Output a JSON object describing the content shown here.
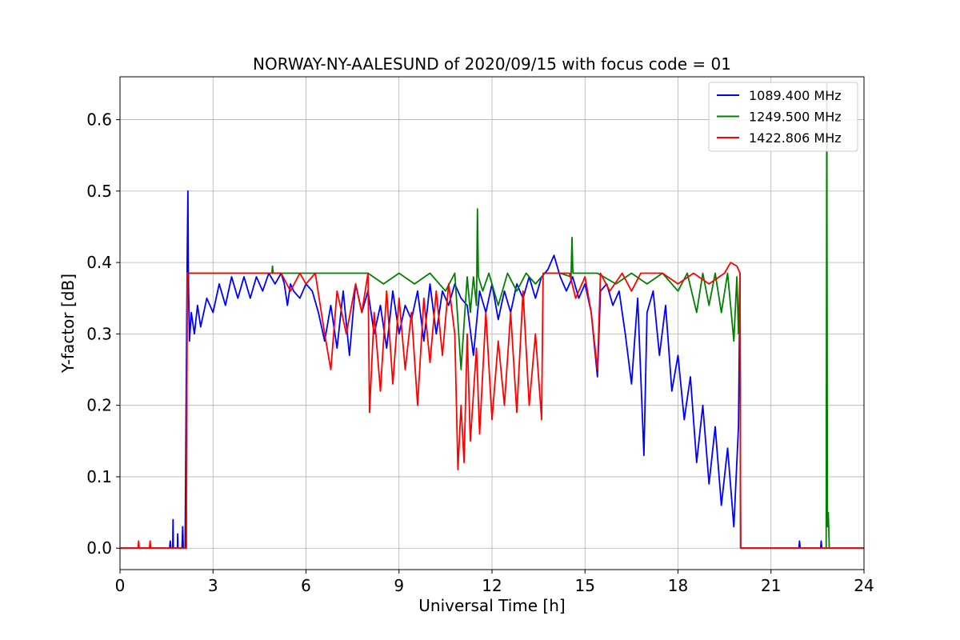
{
  "chart_data": {
    "type": "line",
    "title": "NORWAY-NY-AALESUND of 2020/09/15 with focus code = 01",
    "xlabel": "Universal Time [h]",
    "ylabel": "Y-factor [dB]",
    "xlim": [
      0,
      24
    ],
    "ylim": [
      -0.03,
      0.66
    ],
    "xticks": [
      0,
      3,
      6,
      9,
      12,
      15,
      18,
      21,
      24
    ],
    "xtick_labels": [
      "0",
      "3",
      "6",
      "9",
      "12",
      "15",
      "18",
      "21",
      "24"
    ],
    "yticks": [
      0.0,
      0.1,
      0.2,
      0.3,
      0.4,
      0.5,
      0.6
    ],
    "ytick_labels": [
      "0.0",
      "0.1",
      "0.2",
      "0.3",
      "0.4",
      "0.5",
      "0.6"
    ],
    "grid": true,
    "legend_position": "top-right",
    "series": [
      {
        "name": "1089.400 MHz",
        "color": "#0000ff",
        "points": [
          [
            0,
            0
          ],
          [
            1.6,
            0
          ],
          [
            1.62,
            0.01
          ],
          [
            1.64,
            0
          ],
          [
            1.7,
            0
          ],
          [
            1.71,
            0.04
          ],
          [
            1.72,
            0
          ],
          [
            1.85,
            0
          ],
          [
            1.86,
            0.02
          ],
          [
            1.87,
            0
          ],
          [
            2.0,
            0
          ],
          [
            2.02,
            0.03
          ],
          [
            2.04,
            0
          ],
          [
            2.1,
            0
          ],
          [
            2.14,
            0.25
          ],
          [
            2.17,
            0.42
          ],
          [
            2.19,
            0.5
          ],
          [
            2.21,
            0.37
          ],
          [
            2.24,
            0.29
          ],
          [
            2.3,
            0.33
          ],
          [
            2.4,
            0.3
          ],
          [
            2.5,
            0.34
          ],
          [
            2.6,
            0.31
          ],
          [
            2.8,
            0.35
          ],
          [
            3.0,
            0.33
          ],
          [
            3.2,
            0.37
          ],
          [
            3.4,
            0.34
          ],
          [
            3.6,
            0.38
          ],
          [
            3.8,
            0.35
          ],
          [
            4.0,
            0.38
          ],
          [
            4.2,
            0.35
          ],
          [
            4.4,
            0.38
          ],
          [
            4.6,
            0.36
          ],
          [
            4.8,
            0.385
          ],
          [
            5.0,
            0.37
          ],
          [
            5.2,
            0.385
          ],
          [
            5.3,
            0.37
          ],
          [
            5.4,
            0.34
          ],
          [
            5.5,
            0.37
          ],
          [
            5.6,
            0.36
          ],
          [
            5.8,
            0.35
          ],
          [
            6.0,
            0.37
          ],
          [
            6.2,
            0.36
          ],
          [
            6.4,
            0.33
          ],
          [
            6.6,
            0.29
          ],
          [
            6.8,
            0.34
          ],
          [
            7.0,
            0.28
          ],
          [
            7.2,
            0.36
          ],
          [
            7.4,
            0.27
          ],
          [
            7.6,
            0.37
          ],
          [
            7.8,
            0.33
          ],
          [
            8.0,
            0.36
          ],
          [
            8.2,
            0.3
          ],
          [
            8.4,
            0.34
          ],
          [
            8.6,
            0.28
          ],
          [
            8.8,
            0.36
          ],
          [
            9.0,
            0.3
          ],
          [
            9.2,
            0.34
          ],
          [
            9.4,
            0.32
          ],
          [
            9.6,
            0.36
          ],
          [
            9.8,
            0.29
          ],
          [
            10.0,
            0.37
          ],
          [
            10.2,
            0.3
          ],
          [
            10.4,
            0.36
          ],
          [
            10.6,
            0.34
          ],
          [
            10.8,
            0.37
          ],
          [
            11.0,
            0.35
          ],
          [
            11.2,
            0.34
          ],
          [
            11.4,
            0.27
          ],
          [
            11.6,
            0.36
          ],
          [
            11.8,
            0.33
          ],
          [
            12.0,
            0.37
          ],
          [
            12.2,
            0.32
          ],
          [
            12.4,
            0.36
          ],
          [
            12.6,
            0.33
          ],
          [
            12.8,
            0.37
          ],
          [
            13.0,
            0.35
          ],
          [
            13.2,
            0.38
          ],
          [
            13.4,
            0.35
          ],
          [
            13.6,
            0.38
          ],
          [
            13.8,
            0.39
          ],
          [
            14.0,
            0.41
          ],
          [
            14.2,
            0.38
          ],
          [
            14.4,
            0.36
          ],
          [
            14.6,
            0.38
          ],
          [
            14.8,
            0.35
          ],
          [
            15.0,
            0.37
          ],
          [
            15.2,
            0.33
          ],
          [
            15.4,
            0.24
          ],
          [
            15.5,
            0.36
          ],
          [
            15.7,
            0.37
          ],
          [
            15.9,
            0.34
          ],
          [
            16.1,
            0.36
          ],
          [
            16.3,
            0.3
          ],
          [
            16.5,
            0.23
          ],
          [
            16.7,
            0.35
          ],
          [
            16.9,
            0.13
          ],
          [
            17.0,
            0.33
          ],
          [
            17.2,
            0.36
          ],
          [
            17.4,
            0.27
          ],
          [
            17.6,
            0.34
          ],
          [
            17.8,
            0.22
          ],
          [
            18.0,
            0.27
          ],
          [
            18.2,
            0.18
          ],
          [
            18.4,
            0.24
          ],
          [
            18.6,
            0.12
          ],
          [
            18.8,
            0.2
          ],
          [
            19.0,
            0.09
          ],
          [
            19.2,
            0.17
          ],
          [
            19.4,
            0.06
          ],
          [
            19.6,
            0.14
          ],
          [
            19.8,
            0.03
          ],
          [
            19.95,
            0.17
          ],
          [
            20.0,
            0.38
          ],
          [
            20.02,
            0
          ],
          [
            21.9,
            0
          ],
          [
            21.92,
            0.01
          ],
          [
            21.94,
            0
          ],
          [
            22.6,
            0
          ],
          [
            22.62,
            0.01
          ],
          [
            22.64,
            0
          ],
          [
            24,
            0
          ]
        ]
      },
      {
        "name": "1249.500 MHz",
        "color": "#008000",
        "points": [
          [
            0,
            0
          ],
          [
            2.14,
            0
          ],
          [
            2.17,
            0.385
          ],
          [
            4.9,
            0.385
          ],
          [
            4.92,
            0.395
          ],
          [
            4.94,
            0.385
          ],
          [
            6.0,
            0.385
          ],
          [
            8.0,
            0.385
          ],
          [
            8.5,
            0.37
          ],
          [
            9.0,
            0.385
          ],
          [
            9.5,
            0.37
          ],
          [
            10.0,
            0.385
          ],
          [
            10.5,
            0.36
          ],
          [
            10.8,
            0.385
          ],
          [
            11.0,
            0.25
          ],
          [
            11.2,
            0.38
          ],
          [
            11.3,
            0.33
          ],
          [
            11.4,
            0.38
          ],
          [
            11.5,
            0.34
          ],
          [
            11.53,
            0.475
          ],
          [
            11.56,
            0.38
          ],
          [
            11.7,
            0.36
          ],
          [
            11.9,
            0.385
          ],
          [
            12.2,
            0.34
          ],
          [
            12.5,
            0.385
          ],
          [
            12.8,
            0.36
          ],
          [
            13.1,
            0.385
          ],
          [
            13.4,
            0.37
          ],
          [
            13.7,
            0.385
          ],
          [
            14.2,
            0.385
          ],
          [
            14.55,
            0.38
          ],
          [
            14.58,
            0.435
          ],
          [
            14.61,
            0.385
          ],
          [
            15.0,
            0.385
          ],
          [
            15.4,
            0.385
          ],
          [
            16.0,
            0.37
          ],
          [
            16.5,
            0.385
          ],
          [
            17.0,
            0.37
          ],
          [
            17.5,
            0.385
          ],
          [
            18.0,
            0.36
          ],
          [
            18.3,
            0.385
          ],
          [
            18.6,
            0.33
          ],
          [
            18.8,
            0.385
          ],
          [
            19.0,
            0.34
          ],
          [
            19.2,
            0.385
          ],
          [
            19.4,
            0.33
          ],
          [
            19.6,
            0.385
          ],
          [
            19.8,
            0.29
          ],
          [
            19.9,
            0.38
          ],
          [
            19.95,
            0.3
          ],
          [
            20.0,
            0.385
          ],
          [
            20.02,
            0
          ],
          [
            22.78,
            0
          ],
          [
            22.8,
            0.65
          ],
          [
            22.82,
            0.03
          ],
          [
            22.85,
            0.05
          ],
          [
            22.88,
            0
          ],
          [
            24,
            0
          ]
        ]
      },
      {
        "name": "1422.806 MHz",
        "color": "#ff0000",
        "points": [
          [
            0,
            0
          ],
          [
            0.58,
            0
          ],
          [
            0.6,
            0.01
          ],
          [
            0.62,
            0
          ],
          [
            0.95,
            0
          ],
          [
            0.97,
            0.01
          ],
          [
            0.99,
            0
          ],
          [
            2.14,
            0
          ],
          [
            2.17,
            0.385
          ],
          [
            5.2,
            0.385
          ],
          [
            5.5,
            0.36
          ],
          [
            5.8,
            0.385
          ],
          [
            6.0,
            0.37
          ],
          [
            6.3,
            0.385
          ],
          [
            6.6,
            0.3
          ],
          [
            6.8,
            0.25
          ],
          [
            7.0,
            0.36
          ],
          [
            7.3,
            0.3
          ],
          [
            7.6,
            0.37
          ],
          [
            7.8,
            0.33
          ],
          [
            8.0,
            0.385
          ],
          [
            8.05,
            0.19
          ],
          [
            8.2,
            0.33
          ],
          [
            8.4,
            0.22
          ],
          [
            8.6,
            0.36
          ],
          [
            8.8,
            0.23
          ],
          [
            9.0,
            0.35
          ],
          [
            9.2,
            0.25
          ],
          [
            9.4,
            0.33
          ],
          [
            9.6,
            0.2
          ],
          [
            9.8,
            0.35
          ],
          [
            10.0,
            0.26
          ],
          [
            10.2,
            0.36
          ],
          [
            10.4,
            0.27
          ],
          [
            10.6,
            0.37
          ],
          [
            10.8,
            0.3
          ],
          [
            10.9,
            0.11
          ],
          [
            11.0,
            0.2
          ],
          [
            11.1,
            0.12
          ],
          [
            11.2,
            0.3
          ],
          [
            11.3,
            0.15
          ],
          [
            11.5,
            0.28
          ],
          [
            11.6,
            0.16
          ],
          [
            11.8,
            0.33
          ],
          [
            12.0,
            0.18
          ],
          [
            12.2,
            0.29
          ],
          [
            12.4,
            0.2
          ],
          [
            12.6,
            0.33
          ],
          [
            12.8,
            0.19
          ],
          [
            13.0,
            0.36
          ],
          [
            13.2,
            0.2
          ],
          [
            13.4,
            0.3
          ],
          [
            13.6,
            0.18
          ],
          [
            13.65,
            0.385
          ],
          [
            14.5,
            0.385
          ],
          [
            14.7,
            0.35
          ],
          [
            15.0,
            0.38
          ],
          [
            15.2,
            0.33
          ],
          [
            15.4,
            0.25
          ],
          [
            15.5,
            0.385
          ],
          [
            15.8,
            0.36
          ],
          [
            16.2,
            0.385
          ],
          [
            16.5,
            0.36
          ],
          [
            16.8,
            0.385
          ],
          [
            17.5,
            0.385
          ],
          [
            18.0,
            0.37
          ],
          [
            18.5,
            0.385
          ],
          [
            19.0,
            0.37
          ],
          [
            19.5,
            0.385
          ],
          [
            19.7,
            0.4
          ],
          [
            19.9,
            0.395
          ],
          [
            20.0,
            0.385
          ],
          [
            20.02,
            0
          ],
          [
            24,
            0
          ]
        ]
      }
    ]
  }
}
